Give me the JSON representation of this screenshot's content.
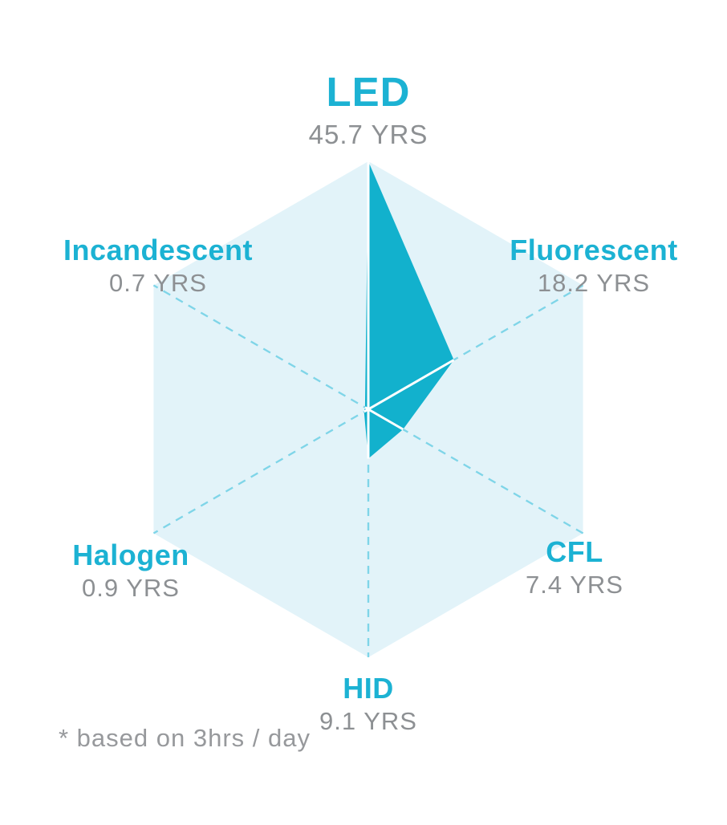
{
  "chart_data": {
    "type": "radar",
    "title": "",
    "unit": "YRS",
    "max": 45.7,
    "grid": "hexagon with dashed diagonals, no tick labels",
    "legend_position": "none",
    "footnote": "* based on 3hrs / day",
    "axes": [
      {
        "label": "LED",
        "value": 45.7,
        "value_text": "45.7 YRS"
      },
      {
        "label": "Fluorescent",
        "value": 18.2,
        "value_text": "18.2 YRS"
      },
      {
        "label": "CFL",
        "value": 7.4,
        "value_text": "7.4 YRS"
      },
      {
        "label": "HID",
        "value": 9.1,
        "value_text": "9.1 YRS"
      },
      {
        "label": "Halogen",
        "value": 0.9,
        "value_text": "0.9 YRS"
      },
      {
        "label": "Incandescent",
        "value": 0.7,
        "value_text": "0.7 YRS"
      }
    ],
    "colors": {
      "fill": "#12b1cd",
      "label": "#1cb2d3",
      "value_text": "#8d9093",
      "footnote_text": "#97999c",
      "grid_fill": "#e2f3f9",
      "grid_dash": "#7fd5e8",
      "spoke": "#ffffff",
      "background": "#ffffff"
    }
  }
}
